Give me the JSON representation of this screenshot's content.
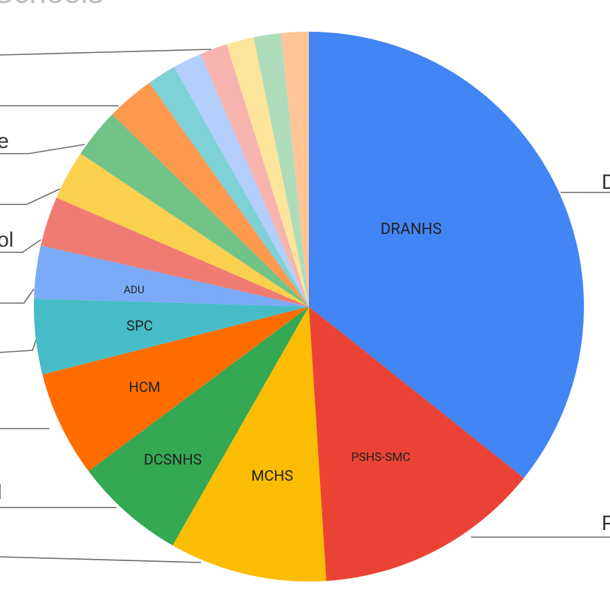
{
  "chart_data": {
    "type": "pie",
    "title": "Schools",
    "slices": [
      {
        "label": "DRANHS",
        "value": 35.5,
        "color": "#4285F4",
        "show_label": true
      },
      {
        "label": "PSHS-SMC",
        "value": 13.2,
        "color": "#EA4335",
        "show_label": true
      },
      {
        "label": "MCHS",
        "value": 9.2,
        "color": "#FBBC04",
        "show_label": true
      },
      {
        "label": "DCSNHS",
        "value": 6.5,
        "color": "#34A853",
        "show_label": true
      },
      {
        "label": "HCM",
        "value": 6.2,
        "color": "#FF6D01",
        "show_label": true
      },
      {
        "label": "SPC",
        "value": 4.4,
        "color": "#46BDC6",
        "show_label": true
      },
      {
        "label": "ADU",
        "value": 3.1,
        "color": "#7BAAF7",
        "show_label": true
      },
      {
        "label": "",
        "value": 2.9,
        "color": "#F07B72",
        "show_label": false
      },
      {
        "label": "",
        "value": 2.9,
        "color": "#FCD04F",
        "show_label": false
      },
      {
        "label": "",
        "value": 2.9,
        "color": "#71C287",
        "show_label": false
      },
      {
        "label": "",
        "value": 2.8,
        "color": "#FF994D",
        "show_label": false
      },
      {
        "label": "",
        "value": 1.7,
        "color": "#7ED1D7",
        "show_label": false
      },
      {
        "label": "",
        "value": 1.7,
        "color": "#B3CEFB",
        "show_label": false
      },
      {
        "label": "",
        "value": 1.6,
        "color": "#F7B4AE",
        "show_label": false
      },
      {
        "label": "",
        "value": 1.6,
        "color": "#FDE49B",
        "show_label": false
      },
      {
        "label": "",
        "value": 1.6,
        "color": "#AEDCBA",
        "show_label": false
      },
      {
        "label": "",
        "value": 1.6,
        "color": "#FFC599",
        "show_label": false
      }
    ],
    "edge_labels": [
      "D",
      "P",
      "e",
      "ol",
      "l"
    ]
  }
}
